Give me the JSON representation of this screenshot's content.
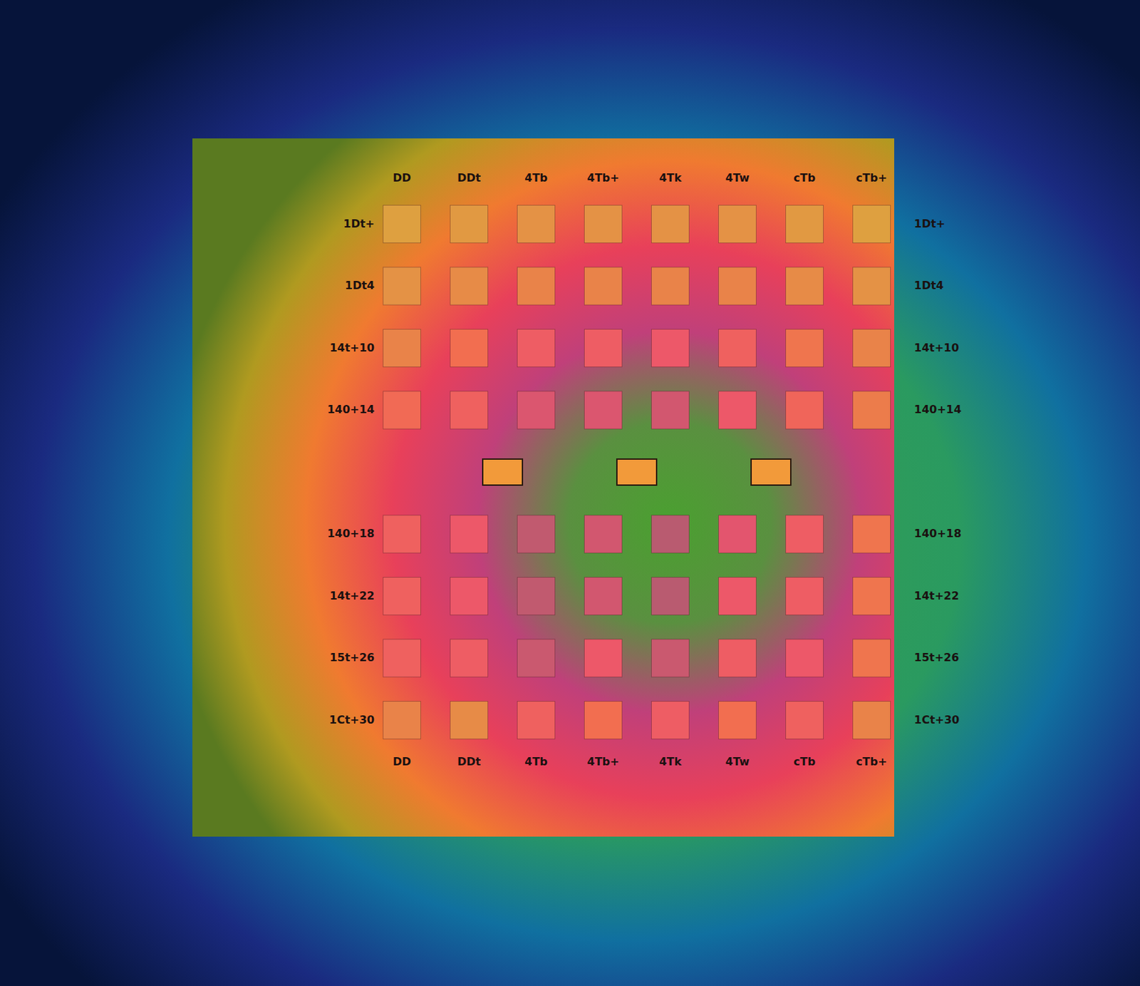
{
  "chart_data": {
    "type": "heatmap",
    "x_labels": [
      "DD",
      "DDt",
      "4Tb",
      "4Tb+",
      "4Tk",
      "4Tw",
      "cTb",
      "cTb+"
    ],
    "x_labels_bottom": [
      "DD",
      "DDt",
      "4Tb",
      "4Tb+",
      "4Tk",
      "4Tw",
      "cTb",
      "cTb+"
    ],
    "y_labels": [
      "1Dt+",
      "1Dt4",
      "14t+10",
      "140+14",
      null,
      "140+18",
      "14t+22",
      "15t+26",
      "1Ct+30"
    ],
    "y_labels_right": [
      "1Dt+",
      "1Dt4",
      "14t+10",
      "140+14",
      null,
      "140+18",
      "14t+22",
      "15t+26",
      "1Ct+30"
    ],
    "cells": [
      [
        0.0,
        0.05,
        0.1,
        0.1,
        0.1,
        0.1,
        0.05,
        0.0
      ],
      [
        0.1,
        0.15,
        0.2,
        0.2,
        0.2,
        0.2,
        0.15,
        0.1
      ],
      [
        0.2,
        0.35,
        0.55,
        0.55,
        0.6,
        0.5,
        0.3,
        0.2
      ],
      [
        0.4,
        0.5,
        0.75,
        0.75,
        0.8,
        0.6,
        0.45,
        0.25
      ],
      [
        null,
        null,
        null,
        null,
        null,
        null,
        null,
        null
      ],
      [
        0.5,
        0.6,
        0.9,
        0.8,
        0.95,
        0.7,
        0.55,
        0.3
      ],
      [
        0.5,
        0.6,
        0.9,
        0.8,
        0.95,
        0.6,
        0.55,
        0.3
      ],
      [
        0.5,
        0.55,
        0.85,
        0.6,
        0.85,
        0.55,
        0.6,
        0.3
      ],
      [
        0.2,
        0.15,
        0.5,
        0.35,
        0.55,
        0.35,
        0.5,
        0.2
      ]
    ],
    "color_range": [
      0,
      1
    ],
    "highlights": [
      1.5,
      3.5,
      5.5
    ],
    "highlight_row": 4
  }
}
